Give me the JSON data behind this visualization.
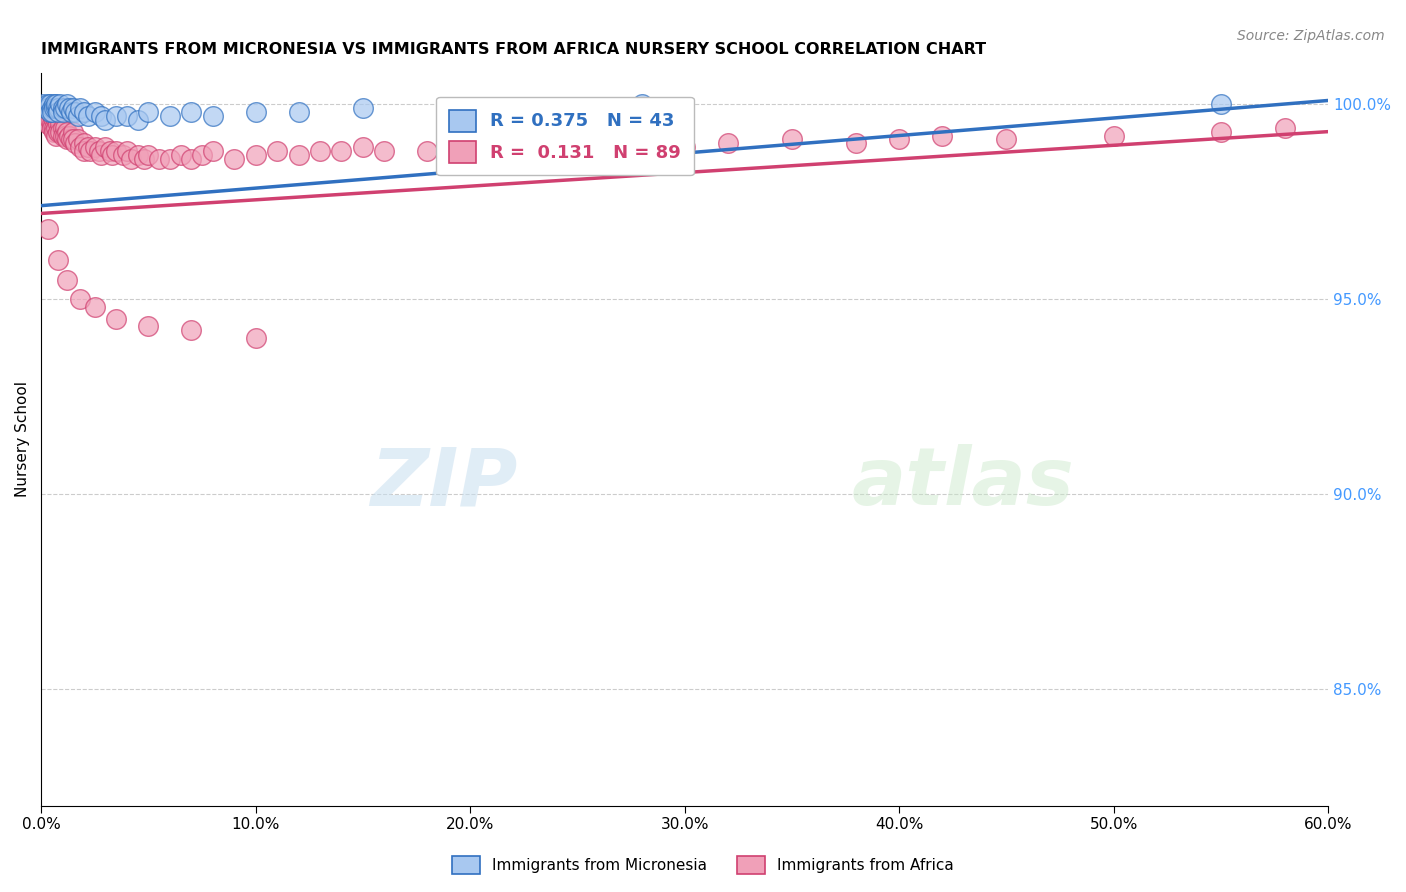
{
  "title": "IMMIGRANTS FROM MICRONESIA VS IMMIGRANTS FROM AFRICA NURSERY SCHOOL CORRELATION CHART",
  "source": "Source: ZipAtlas.com",
  "ylabel": "Nursery School",
  "xlim": [
    0.0,
    0.6
  ],
  "ylim": [
    0.82,
    1.008
  ],
  "xtick_labels": [
    "0.0%",
    "10.0%",
    "20.0%",
    "30.0%",
    "40.0%",
    "50.0%",
    "60.0%"
  ],
  "xtick_values": [
    0.0,
    0.1,
    0.2,
    0.3,
    0.4,
    0.5,
    0.6
  ],
  "ytick_labels": [
    "85.0%",
    "90.0%",
    "95.0%",
    "100.0%"
  ],
  "ytick_values": [
    0.85,
    0.9,
    0.95,
    1.0
  ],
  "micronesia_R": 0.375,
  "micronesia_N": 43,
  "africa_R": 0.131,
  "africa_N": 89,
  "micronesia_color": "#A8C8F0",
  "africa_color": "#F0A0B8",
  "micronesia_line_color": "#3070C0",
  "africa_line_color": "#D04070",
  "legend_label_micronesia": "Immigrants from Micronesia",
  "legend_label_africa": "Immigrants from Africa",
  "background_color": "#FFFFFF",
  "watermark_text": "ZIPatlas",
  "micronesia_x": [
    0.001,
    0.002,
    0.003,
    0.003,
    0.004,
    0.004,
    0.005,
    0.005,
    0.006,
    0.006,
    0.007,
    0.007,
    0.008,
    0.008,
    0.009,
    0.01,
    0.01,
    0.011,
    0.012,
    0.013,
    0.014,
    0.015,
    0.016,
    0.017,
    0.018,
    0.02,
    0.022,
    0.025,
    0.028,
    0.03,
    0.035,
    0.04,
    0.045,
    0.05,
    0.06,
    0.07,
    0.08,
    0.1,
    0.12,
    0.15,
    0.2,
    0.28,
    0.55
  ],
  "micronesia_y": [
    1.0,
    0.999,
    1.0,
    0.999,
    1.0,
    0.998,
    0.999,
    0.998,
    1.0,
    0.999,
    0.999,
    1.0,
    0.999,
    0.998,
    1.0,
    0.999,
    0.998,
    0.999,
    1.0,
    0.999,
    0.998,
    0.999,
    0.998,
    0.997,
    0.999,
    0.998,
    0.997,
    0.998,
    0.997,
    0.996,
    0.997,
    0.997,
    0.996,
    0.998,
    0.997,
    0.998,
    0.997,
    0.998,
    0.998,
    0.999,
    0.999,
    1.0,
    1.0
  ],
  "africa_x": [
    0.001,
    0.001,
    0.002,
    0.002,
    0.003,
    0.003,
    0.004,
    0.004,
    0.005,
    0.005,
    0.005,
    0.006,
    0.006,
    0.006,
    0.007,
    0.007,
    0.007,
    0.008,
    0.008,
    0.009,
    0.009,
    0.01,
    0.01,
    0.011,
    0.011,
    0.012,
    0.012,
    0.013,
    0.014,
    0.015,
    0.015,
    0.016,
    0.017,
    0.018,
    0.02,
    0.02,
    0.022,
    0.023,
    0.025,
    0.027,
    0.028,
    0.03,
    0.032,
    0.033,
    0.035,
    0.038,
    0.04,
    0.042,
    0.045,
    0.048,
    0.05,
    0.055,
    0.06,
    0.065,
    0.07,
    0.075,
    0.08,
    0.09,
    0.1,
    0.11,
    0.12,
    0.13,
    0.14,
    0.15,
    0.16,
    0.18,
    0.2,
    0.22,
    0.25,
    0.28,
    0.3,
    0.32,
    0.35,
    0.38,
    0.4,
    0.42,
    0.45,
    0.5,
    0.55,
    0.58,
    0.003,
    0.008,
    0.012,
    0.018,
    0.025,
    0.035,
    0.05,
    0.07,
    0.1
  ],
  "africa_y": [
    0.999,
    0.997,
    0.998,
    0.996,
    0.997,
    0.995,
    0.997,
    0.996,
    0.997,
    0.995,
    0.994,
    0.996,
    0.994,
    0.993,
    0.996,
    0.994,
    0.992,
    0.995,
    0.993,
    0.995,
    0.993,
    0.994,
    0.992,
    0.994,
    0.992,
    0.993,
    0.991,
    0.992,
    0.991,
    0.993,
    0.991,
    0.99,
    0.991,
    0.989,
    0.99,
    0.988,
    0.989,
    0.988,
    0.989,
    0.988,
    0.987,
    0.989,
    0.988,
    0.987,
    0.988,
    0.987,
    0.988,
    0.986,
    0.987,
    0.986,
    0.987,
    0.986,
    0.986,
    0.987,
    0.986,
    0.987,
    0.988,
    0.986,
    0.987,
    0.988,
    0.987,
    0.988,
    0.988,
    0.989,
    0.988,
    0.988,
    0.989,
    0.989,
    0.99,
    0.99,
    0.989,
    0.99,
    0.991,
    0.99,
    0.991,
    0.992,
    0.991,
    0.992,
    0.993,
    0.994,
    0.968,
    0.96,
    0.955,
    0.95,
    0.948,
    0.945,
    0.943,
    0.942,
    0.94
  ]
}
